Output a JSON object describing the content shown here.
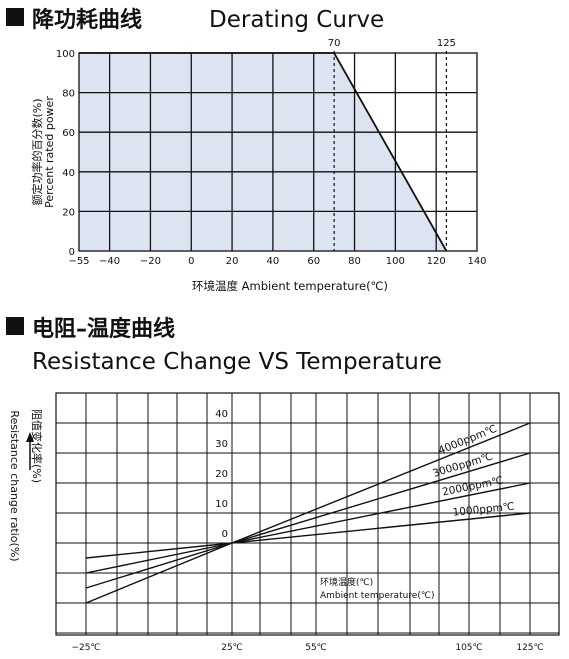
{
  "section1": {
    "title_zh": "降功耗曲线",
    "title_en": "Derating Curve"
  },
  "section2": {
    "title_zh": "电阻–温度曲线",
    "title_en": "Resistance Change VS Temperature"
  },
  "chart_data": [
    {
      "type": "line",
      "title": "降功耗曲线 Derating Curve",
      "xlabel": "环境温度 Ambient temperature(℃)",
      "ylabel": [
        "额定功率的百分数(%)",
        "Percent rated power"
      ],
      "x_ticks": [
        -55,
        -40,
        -20,
        0,
        20,
        40,
        60,
        80,
        100,
        120,
        140
      ],
      "y_ticks": [
        0,
        20,
        40,
        60,
        80,
        100
      ],
      "xlim": [
        -55,
        140
      ],
      "ylim": [
        0,
        100
      ],
      "grid": true,
      "shaded_area": true,
      "markers": [
        {
          "label": "70",
          "x": 70
        },
        {
          "label": "125",
          "x": 125
        }
      ],
      "series": [
        {
          "x": [
            -55,
            70,
            125
          ],
          "y": [
            100,
            100,
            0
          ]
        }
      ]
    },
    {
      "type": "line",
      "title": "电阻–温度曲线 Resistance Change VS Temperature",
      "ylabel": [
        "阻值变化率(%)",
        "Resistance change ratio(%)"
      ],
      "xlabel": [
        "环境温度(℃)",
        "Ambient temperature(℃)"
      ],
      "x_ticks": [
        "−25℃",
        "25℃",
        "55℃",
        "105℃",
        "125℃"
      ],
      "y_ticks": [
        0,
        10,
        20,
        30,
        40
      ],
      "grid": true,
      "series": [
        {
          "name": "4000ppm℃",
          "x": [
            -25,
            25,
            125
          ],
          "y": [
            -20,
            0,
            40
          ]
        },
        {
          "name": "3000ppm℃",
          "x": [
            -25,
            25,
            125
          ],
          "y": [
            -15,
            0,
            30
          ]
        },
        {
          "name": "2000ppm℃",
          "x": [
            -25,
            25,
            125
          ],
          "y": [
            -10,
            0,
            20
          ]
        },
        {
          "name": "1000ppm℃",
          "x": [
            -25,
            25,
            125
          ],
          "y": [
            -5,
            0,
            10
          ]
        }
      ]
    }
  ]
}
